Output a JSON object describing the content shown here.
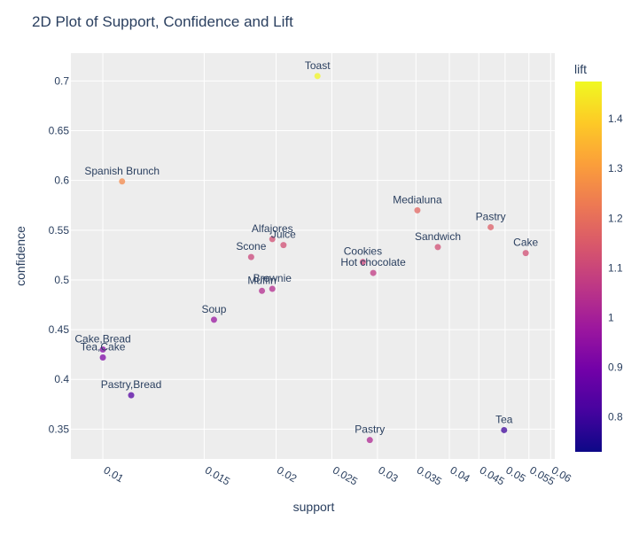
{
  "chart_data": {
    "type": "scatter",
    "title": "2D Plot of Support, Confidence and Lift",
    "xlabel": "support",
    "ylabel": "confidence",
    "x_scale": "log",
    "xlim": [
      0.0088,
      0.061
    ],
    "ylim": [
      0.32,
      0.728
    ],
    "x_ticks": [
      0.01,
      0.015,
      0.02,
      0.025,
      0.03,
      0.035,
      0.04,
      0.045,
      0.05,
      0.055,
      0.06
    ],
    "x_tick_labels": [
      "0.01",
      "0.015",
      "0.02",
      "0.025",
      "0.03",
      "0.035",
      "0.04",
      "0.045",
      "0.05",
      "0.055",
      "0.06"
    ],
    "y_ticks": [
      0.35,
      0.4,
      0.45,
      0.5,
      0.55,
      0.6,
      0.65,
      0.7
    ],
    "y_tick_labels": [
      "0.35",
      "0.4",
      "0.45",
      "0.5",
      "0.55",
      "0.6",
      "0.65",
      "0.7"
    ],
    "grid": true,
    "colorbar": {
      "title": "lift",
      "range": [
        0.73,
        1.475
      ],
      "ticks": [
        0.8,
        0.9,
        1.0,
        1.1,
        1.2,
        1.3,
        1.4
      ],
      "tick_labels": [
        "0.8",
        "0.9",
        "1",
        "1.1",
        "1.2",
        "1.3",
        "1.4"
      ],
      "colorscale": [
        "#0d0887",
        "#46039f",
        "#7201a8",
        "#9c179e",
        "#bd3786",
        "#d8576b",
        "#ed7953",
        "#fb9f3a",
        "#fdca26",
        "#f0f921"
      ]
    },
    "points": [
      {
        "label": "Toast",
        "support": 0.0236,
        "confidence": 0.705,
        "lift": 1.47
      },
      {
        "label": "Spanish Brunch",
        "support": 0.0108,
        "confidence": 0.599,
        "lift": 1.26
      },
      {
        "label": "Medialuna",
        "support": 0.0352,
        "confidence": 0.57,
        "lift": 1.18
      },
      {
        "label": "Pastry",
        "support": 0.0472,
        "confidence": 0.553,
        "lift": 1.16
      },
      {
        "label": "Alfajores",
        "support": 0.0197,
        "confidence": 0.541,
        "lift": 1.12
      },
      {
        "label": "Juice",
        "support": 0.0206,
        "confidence": 0.535,
        "lift": 1.12
      },
      {
        "label": "Sandwich",
        "support": 0.0382,
        "confidence": 0.533,
        "lift": 1.12
      },
      {
        "label": "Cake",
        "support": 0.0543,
        "confidence": 0.527,
        "lift": 1.12
      },
      {
        "label": "Scone",
        "support": 0.0181,
        "confidence": 0.523,
        "lift": 1.1
      },
      {
        "label": "Cookies",
        "support": 0.0283,
        "confidence": 0.518,
        "lift": 1.1
      },
      {
        "label": "Hot chocolate",
        "support": 0.0295,
        "confidence": 0.507,
        "lift": 1.07
      },
      {
        "label": "Brownie",
        "support": 0.0197,
        "confidence": 0.491,
        "lift": 1.03
      },
      {
        "label": "Muffin",
        "support": 0.0189,
        "confidence": 0.489,
        "lift": 1.03
      },
      {
        "label": "Soup",
        "support": 0.0156,
        "confidence": 0.46,
        "lift": 0.97
      },
      {
        "label": "Cake,Bread",
        "support": 0.01,
        "confidence": 0.43,
        "lift": 0.93
      },
      {
        "label": "Tea,Cake",
        "support": 0.01,
        "confidence": 0.422,
        "lift": 0.92
      },
      {
        "label": "Pastry,Bread",
        "support": 0.0112,
        "confidence": 0.384,
        "lift": 0.84
      },
      {
        "label": "Pastry",
        "support": 0.0291,
        "confidence": 0.339,
        "lift": 1.02
      },
      {
        "label": "Tea",
        "support": 0.0498,
        "confidence": 0.349,
        "lift": 0.8
      }
    ]
  }
}
